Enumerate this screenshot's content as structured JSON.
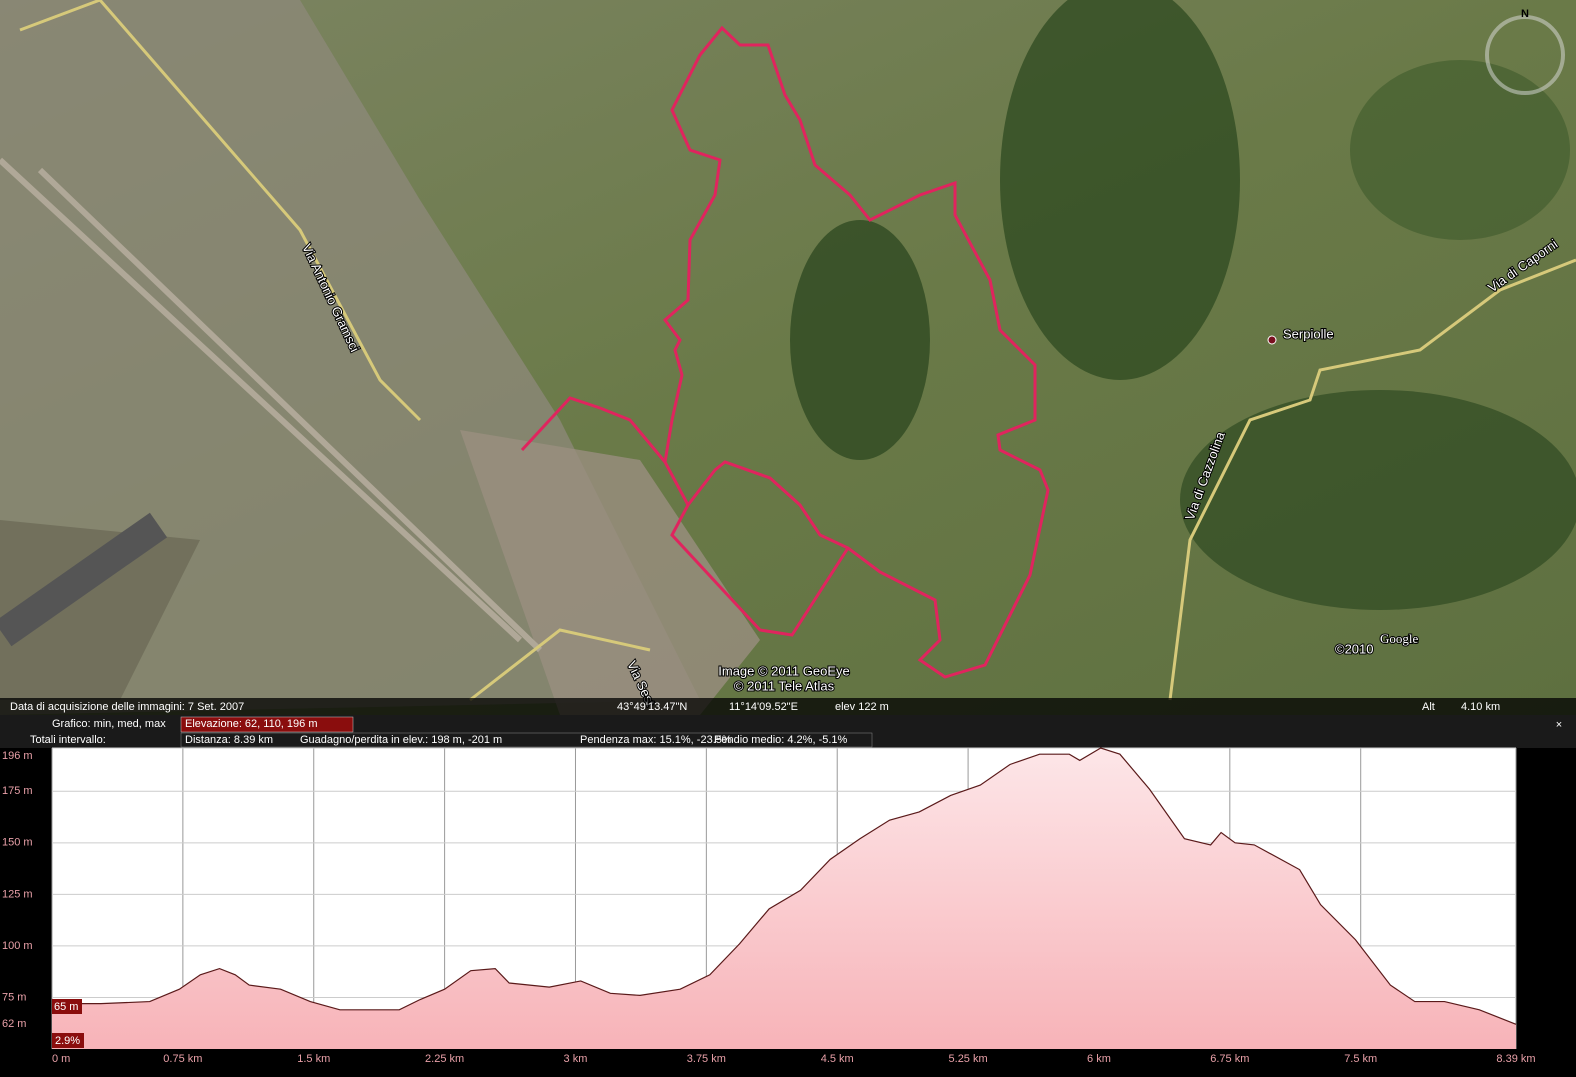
{
  "map": {
    "labels": [
      "Serpiolle",
      "Via di Caporni",
      "Via di Cazzolina",
      "Via Antonio Gramsci",
      "Via Sest"
    ],
    "attribution": [
      "Image © 2011 GeoEye",
      "© 2011 Tele Atlas"
    ],
    "logo": "Google",
    "logo_year": "©2010",
    "compass": "N"
  },
  "status_bar": {
    "acquisition": "Data di acquisizione delle immagini:  7 Set. 2007",
    "lat": "43°49'13.47\"N",
    "lon": "11°14'09.52\"E",
    "elev": "elev  122 m",
    "alt_label": "Alt",
    "alt": "4.10 km"
  },
  "profile": {
    "row1_label": "Grafico: min, med, max",
    "elevation": "Elevazione: 62, 110, 196 m",
    "row2_label": "Totali intervallo:",
    "distance": "Distanza: 8.39 km",
    "gain": "Guadagno/perdita in elev.: 198 m, -201 m",
    "slope_max": "Pendenza max: 15.1%, -23.5%",
    "slope_avg": "Pendio medio: 4.2%, -5.1%",
    "cursor_elev": "65 m",
    "cursor_slope": "2.9%",
    "close": "×"
  },
  "chart_data": {
    "type": "area",
    "x": [
      0,
      0.28,
      0.56,
      0.73,
      0.85,
      0.96,
      1.05,
      1.13,
      1.31,
      1.48,
      1.65,
      1.99,
      2.11,
      2.25,
      2.4,
      2.54,
      2.62,
      2.85,
      3.03,
      3.2,
      3.37,
      3.6,
      3.77,
      3.94,
      4.11,
      4.29,
      4.46,
      4.63,
      4.8,
      4.97,
      5.15,
      5.32,
      5.49,
      5.66,
      5.83,
      5.89,
      6.01,
      6.12,
      6.29,
      6.49,
      6.64,
      6.7,
      6.78,
      6.89,
      7.15,
      7.27,
      7.47,
      7.67,
      7.81,
      7.98,
      8.18,
      8.39
    ],
    "values": [
      72,
      72,
      73,
      79,
      86,
      89,
      86,
      81,
      79,
      73,
      69,
      69,
      74,
      79,
      88,
      89,
      82,
      80,
      83,
      77,
      76,
      79,
      86,
      101,
      118,
      127,
      142,
      152,
      161,
      165,
      173,
      178,
      188,
      193,
      193,
      190,
      196,
      193,
      176,
      152,
      149,
      155,
      150,
      149,
      137,
      120,
      103,
      81,
      73,
      73,
      69,
      62
    ],
    "color": "#f7b3b8",
    "line_color": "#5a1a1a",
    "xlim": [
      0,
      8.39
    ],
    "xticks": [
      {
        "value": 0,
        "label": "0 m"
      },
      {
        "value": 0.75,
        "label": "0.75 km"
      },
      {
        "value": 1.5,
        "label": "1.5 km"
      },
      {
        "value": 2.25,
        "label": "2.25 km"
      },
      {
        "value": 3,
        "label": "3 km"
      },
      {
        "value": 3.75,
        "label": "3.75 km"
      },
      {
        "value": 4.5,
        "label": "4.5 km"
      },
      {
        "value": 5.25,
        "label": "5.25 km"
      },
      {
        "value": 6,
        "label": "6 km"
      },
      {
        "value": 6.75,
        "label": "6.75 km"
      },
      {
        "value": 7.5,
        "label": "7.5 km"
      },
      {
        "value": 8.39,
        "label": "8.39 km"
      }
    ],
    "ylim": [
      50,
      196
    ],
    "yticks": [
      {
        "value": 62,
        "label": "62 m"
      },
      {
        "value": 75,
        "label": "75 m"
      },
      {
        "value": 100,
        "label": "100 m"
      },
      {
        "value": 125,
        "label": "125 m"
      },
      {
        "value": 150,
        "label": "150 m"
      },
      {
        "value": 175,
        "label": "175 m"
      },
      {
        "value": 196,
        "label": "196 m"
      }
    ],
    "grid": true
  }
}
